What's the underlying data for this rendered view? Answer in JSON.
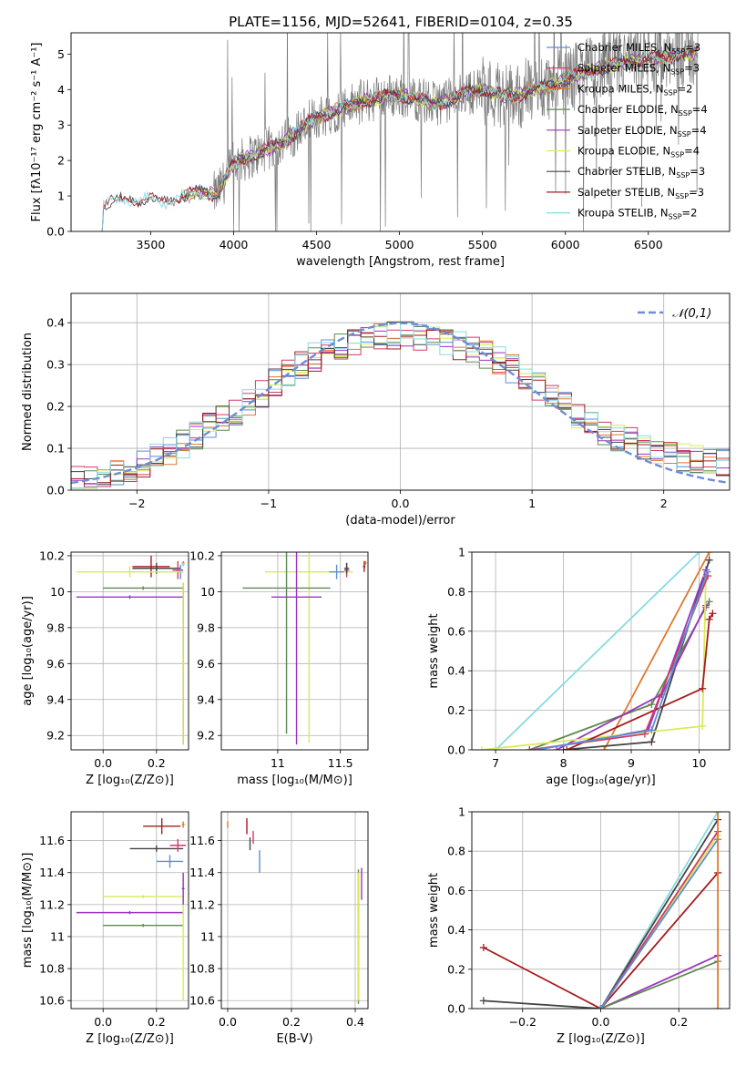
{
  "title": "PLATE=1156, MJD=52641, FIBERID=0104, z=0.35",
  "colors": {
    "Chabrier MILES": "#5a8fd6",
    "Salpeter MILES": "#d13a66",
    "Kroupa MILES": "#e0782e",
    "Chabrier ELODIE": "#5f8a52",
    "Salpeter ELODIE": "#9a35c0",
    "Kroupa ELODIE": "#d9ea55",
    "Chabrier STELIB": "#444444",
    "Salpeter STELIB": "#a51d1d",
    "Kroupa STELIB": "#86dbe3",
    "data": "#7a7a7a",
    "normal": "#6a8fd6"
  },
  "chart_data": [
    {
      "id": "spectrum",
      "type": "line",
      "title": "PLATE=1156, MJD=52641, FIBERID=0104, z=0.35",
      "xlabel": "wavelength [Angstrom, rest frame]",
      "ylabel": "Flux [fλ10⁻¹⁷ erg cm⁻² s⁻¹ A⁻¹]",
      "xlim": [
        3020,
        6990
      ],
      "ylim": [
        0,
        5.6
      ],
      "xticks": [
        3500,
        4000,
        4500,
        5000,
        5500,
        6000,
        6500
      ],
      "yticks": [
        0,
        1,
        2,
        3,
        4,
        5
      ],
      "grid": false,
      "legend_position": "right",
      "legend": [
        {
          "name": "Chabrier MILES",
          "sub": "SSP",
          "n": "=3"
        },
        {
          "name": "Salpeter MILES",
          "sub": "SSP",
          "n": "=3"
        },
        {
          "name": "Kroupa MILES",
          "sub": "SSP",
          "n": "=2"
        },
        {
          "name": "Chabrier ELODIE",
          "sub": "SSP",
          "n": "=4"
        },
        {
          "name": "Salpeter ELODIE",
          "sub": "SSP",
          "n": "=4"
        },
        {
          "name": "Kroupa ELODIE",
          "sub": "SSP",
          "n": "=4"
        },
        {
          "name": "Chabrier STELIB",
          "sub": "SSP",
          "n": "=3"
        },
        {
          "name": "Salpeter STELIB",
          "sub": "SSP",
          "n": "=3"
        },
        {
          "name": "Kroupa STELIB",
          "sub": "SSP",
          "n": "=2"
        }
      ],
      "model_trend": {
        "x": [
          3200,
          3300,
          3400,
          3500,
          3600,
          3700,
          3800,
          3900,
          4000,
          4100,
          4200,
          4300,
          4400,
          4500,
          4600,
          4700,
          4800,
          4900,
          5000,
          5100,
          5200,
          5300,
          5400,
          5500,
          5600,
          5700,
          5800,
          5900,
          6000,
          6100,
          6200,
          6300,
          6400,
          6500,
          6600,
          6700,
          6800
        ],
        "y": [
          0.75,
          0.85,
          0.9,
          0.88,
          0.85,
          1.0,
          1.1,
          1.05,
          1.9,
          2.1,
          2.3,
          2.5,
          2.9,
          3.2,
          3.4,
          3.55,
          3.7,
          3.8,
          3.85,
          3.75,
          3.6,
          3.7,
          3.9,
          4.0,
          3.85,
          3.8,
          4.0,
          4.1,
          4.3,
          4.45,
          4.6,
          4.7,
          4.8,
          4.85,
          4.9,
          5.0,
          5.05
        ]
      }
    },
    {
      "id": "residuals",
      "type": "line",
      "xlabel": "(data-model)/error",
      "ylabel": "Normed distribution",
      "xlim": [
        -2.5,
        2.5
      ],
      "ylim": [
        0,
        0.47
      ],
      "xticks": [
        -2,
        -1,
        0,
        1,
        2
      ],
      "yticks": [
        0.0,
        0.1,
        0.2,
        0.3,
        0.4
      ],
      "grid": true,
      "legend_position": "top-right",
      "legend": [
        "𝒩(0,1)"
      ],
      "series_shape": {
        "x": [
          -2.5,
          -2.3,
          -2.1,
          -1.9,
          -1.7,
          -1.5,
          -1.3,
          -1.1,
          -0.9,
          -0.7,
          -0.5,
          -0.3,
          -0.1,
          0.1,
          0.3,
          0.5,
          0.7,
          0.9,
          1.1,
          1.3,
          1.5,
          1.7,
          1.9,
          2.1,
          2.3,
          2.5
        ],
        "y": [
          0.02,
          0.035,
          0.05,
          0.07,
          0.1,
          0.14,
          0.18,
          0.22,
          0.27,
          0.31,
          0.34,
          0.36,
          0.37,
          0.37,
          0.36,
          0.34,
          0.32,
          0.28,
          0.24,
          0.19,
          0.15,
          0.12,
          0.1,
          0.08,
          0.07,
          0.06
        ]
      }
    },
    {
      "id": "age_vs_Z",
      "type": "scatter",
      "xlabel": "Z [log₁₀(Z/Z⊙)]",
      "ylabel": "age  [log₁₀(age/yr)]",
      "xlim": [
        -0.12,
        0.32
      ],
      "ylim": [
        9.12,
        10.22
      ],
      "xticks": [
        0.0,
        0.2
      ],
      "yticks": [
        9.2,
        9.4,
        9.6,
        9.8,
        10.0,
        10.2
      ],
      "points": [
        {
          "model": "Salpeter STELIB",
          "x": 0.18,
          "y": 10.14,
          "xerr": 0.07,
          "yerr": 0.06
        },
        {
          "model": "Chabrier STELIB",
          "x": 0.2,
          "y": 10.13,
          "xerr": 0.09,
          "yerr": 0.03
        },
        {
          "model": "Salpeter MILES",
          "x": 0.28,
          "y": 10.12,
          "xerr": 0.02,
          "yerr": 0.05
        },
        {
          "model": "Chabrier MILES",
          "x": 0.29,
          "y": 10.11,
          "xerr": 0.01,
          "yerr": 0.04
        },
        {
          "model": "Kroupa ELODIE",
          "x": 0.1,
          "y": 10.11,
          "xerr": 0.2,
          "yerr": 0.03
        },
        {
          "model": "Chabrier ELODIE",
          "x": 0.15,
          "y": 10.02,
          "xerr": 0.15,
          "yerr": 0.01
        },
        {
          "model": "Salpeter ELODIE",
          "x": 0.1,
          "y": 9.97,
          "xerr": 0.2,
          "yerr": 0.01
        },
        {
          "model": "Kroupa MILES",
          "x": 0.3,
          "y": 10.16,
          "xerr": 0.005,
          "yerr": 0.01
        },
        {
          "model": "Kroupa STELIB",
          "x": 0.3,
          "y": 10.15,
          "xerr": 0.005,
          "yerr": 0.01
        },
        {
          "model": "Salpeter ELODIE",
          "x": 0.3,
          "y": 9.6,
          "xerr": 0.005,
          "yerr": 0.45
        },
        {
          "model": "Kroupa ELODIE",
          "x": 0.3,
          "y": 9.6,
          "xerr": 0.005,
          "yerr": 0.45
        }
      ]
    },
    {
      "id": "age_vs_mass",
      "type": "scatter",
      "xlabel": "mass [log₁₀(M/M⊙)]",
      "xlim": [
        10.55,
        11.72
      ],
      "ylim": [
        9.12,
        10.22
      ],
      "xticks": [
        11.0,
        11.5
      ],
      "yticks": [
        9.2,
        9.4,
        9.6,
        9.8,
        10.0,
        10.2
      ],
      "points": [
        {
          "model": "Kroupa ELODIE",
          "x": 11.25,
          "y": 10.11,
          "xerr": 0.35,
          "yerr": 0.95
        },
        {
          "model": "Chabrier ELODIE",
          "x": 11.07,
          "y": 10.02,
          "xerr": 0.35,
          "yerr": 0.81
        },
        {
          "model": "Salpeter ELODIE",
          "x": 11.15,
          "y": 9.97,
          "xerr": 0.2,
          "yerr": 0.82
        },
        {
          "model": "Chabrier MILES",
          "x": 11.47,
          "y": 10.11,
          "xerr": 0.06,
          "yerr": 0.04
        },
        {
          "model": "Salpeter MILES",
          "x": 11.55,
          "y": 10.12,
          "xerr": 0.02,
          "yerr": 0.04
        },
        {
          "model": "Chabrier STELIB",
          "x": 11.55,
          "y": 10.13,
          "xerr": 0.02,
          "yerr": 0.03
        },
        {
          "model": "Salpeter STELIB",
          "x": 11.69,
          "y": 10.14,
          "xerr": 0.01,
          "yerr": 0.03
        },
        {
          "model": "Kroupa MILES",
          "x": 11.7,
          "y": 10.16,
          "xerr": 0.01,
          "yerr": 0.01
        }
      ]
    },
    {
      "id": "cumw_vs_age",
      "type": "line",
      "xlabel": "age  [log₁₀(age/yr)]",
      "ylabel": "mass weight",
      "xlim": [
        6.65,
        10.45
      ],
      "ylim": [
        0,
        1
      ],
      "xticks": [
        7,
        8,
        9,
        10
      ],
      "yticks": [
        0.0,
        0.2,
        0.4,
        0.6,
        0.8,
        1.0
      ],
      "grid": true,
      "series": [
        {
          "model": "Kroupa STELIB",
          "x": [
            7.0,
            10.0
          ],
          "y": [
            0.0,
            1.0
          ]
        },
        {
          "model": "Kroupa MILES",
          "x": [
            8.6,
            10.15
          ],
          "y": [
            0.0,
            1.0
          ]
        },
        {
          "model": "Chabrier STELIB",
          "x": [
            8.0,
            9.3,
            10.15
          ],
          "y": [
            0.0,
            0.04,
            0.96
          ]
        },
        {
          "model": "Salpeter ELODIE",
          "x": [
            7.6,
            9.25,
            10.1
          ],
          "y": [
            0.0,
            0.1,
            0.91
          ]
        },
        {
          "model": "Chabrier ELODIE",
          "x": [
            7.5,
            9.3,
            10.1,
            10.15
          ],
          "y": [
            0.0,
            0.23,
            0.72,
            0.75
          ]
        },
        {
          "model": "Salpeter ELODIE",
          "x": [
            7.9,
            9.45,
            10.1
          ],
          "y": [
            0.0,
            0.28,
            0.73
          ]
        },
        {
          "model": "Kroupa ELODIE",
          "x": [
            6.8,
            10.05,
            10.1
          ],
          "y": [
            0.0,
            0.12,
            0.88
          ]
        },
        {
          "model": "Salpeter STELIB",
          "x": [
            8.05,
            10.05,
            10.15,
            10.2
          ],
          "y": [
            0.0,
            0.31,
            0.66,
            0.69
          ]
        },
        {
          "model": "Salpeter MILES",
          "x": [
            7.5,
            9.2,
            10.13
          ],
          "y": [
            0.0,
            0.08,
            0.88
          ]
        },
        {
          "model": "Chabrier MILES",
          "x": [
            7.6,
            9.3,
            10.12
          ],
          "y": [
            0.0,
            0.1,
            0.9
          ]
        }
      ]
    },
    {
      "id": "mass_vs_Z",
      "type": "scatter",
      "xlabel": "Z [log₁₀(Z/Z⊙)]",
      "ylabel": "mass [log₁₀(M/M⊙)]",
      "xlim": [
        -0.12,
        0.32
      ],
      "ylim": [
        10.55,
        11.78
      ],
      "xticks": [
        0.0,
        0.2
      ],
      "yticks": [
        10.6,
        10.8,
        11.0,
        11.2,
        11.4,
        11.6
      ],
      "points": [
        {
          "model": "Salpeter STELIB",
          "x": 0.22,
          "y": 11.69,
          "xerr": 0.07,
          "yerr": 0.05
        },
        {
          "model": "Chabrier STELIB",
          "x": 0.2,
          "y": 11.55,
          "xerr": 0.1,
          "yerr": 0.02
        },
        {
          "model": "Salpeter MILES",
          "x": 0.28,
          "y": 11.57,
          "xerr": 0.03,
          "yerr": 0.04
        },
        {
          "model": "Chabrier MILES",
          "x": 0.25,
          "y": 11.47,
          "xerr": 0.05,
          "yerr": 0.04
        },
        {
          "model": "Kroupa MILES",
          "x": 0.3,
          "y": 11.7,
          "xerr": 0.005,
          "yerr": 0.02
        },
        {
          "model": "Kroupa ELODIE",
          "x": 0.15,
          "y": 11.25,
          "xerr": 0.15,
          "yerr": 0.01
        },
        {
          "model": "Salpeter ELODIE",
          "x": 0.1,
          "y": 11.15,
          "xerr": 0.2,
          "yerr": 0.01
        },
        {
          "model": "Chabrier ELODIE",
          "x": 0.15,
          "y": 11.07,
          "xerr": 0.15,
          "yerr": 0.01
        },
        {
          "model": "Kroupa ELODIE",
          "x": 0.3,
          "y": 11.0,
          "xerr": 0.005,
          "yerr": 0.4
        },
        {
          "model": "Salpeter ELODIE",
          "x": 0.3,
          "y": 11.3,
          "xerr": 0.005,
          "yerr": 0.1
        }
      ]
    },
    {
      "id": "mass_vs_EBV",
      "type": "scatter",
      "xlabel": "E(B-V)",
      "xlim": [
        -0.02,
        0.44
      ],
      "ylim": [
        10.55,
        11.78
      ],
      "xticks": [
        0.0,
        0.2,
        0.4
      ],
      "yticks": [
        10.6,
        10.8,
        11.0,
        11.2,
        11.4,
        11.6
      ],
      "points": [
        {
          "model": "Kroupa MILES",
          "x": 0.0,
          "y": 11.7,
          "xerr": 0.0,
          "yerr": 0.02
        },
        {
          "model": "Salpeter STELIB",
          "x": 0.06,
          "y": 11.69,
          "xerr": 0.0,
          "yerr": 0.05
        },
        {
          "model": "Salpeter MILES",
          "x": 0.08,
          "y": 11.62,
          "xerr": 0.0,
          "yerr": 0.04
        },
        {
          "model": "Chabrier STELIB",
          "x": 0.07,
          "y": 11.58,
          "xerr": 0.0,
          "yerr": 0.04
        },
        {
          "model": "Chabrier MILES",
          "x": 0.1,
          "y": 11.47,
          "xerr": 0.0,
          "yerr": 0.07
        },
        {
          "model": "Salpeter ELODIE",
          "x": 0.42,
          "y": 11.33,
          "xerr": 0.0,
          "yerr": 0.1
        },
        {
          "model": "Chabrier ELODIE",
          "x": 0.41,
          "y": 11.0,
          "xerr": 0.0,
          "yerr": 0.42
        },
        {
          "model": "Kroupa ELODIE",
          "x": 0.41,
          "y": 11.0,
          "xerr": 0.0,
          "yerr": 0.4
        }
      ]
    },
    {
      "id": "cumw_vs_Z",
      "type": "line",
      "xlabel": "Z [log₁₀(Z/Z⊙)]",
      "ylabel": "mass weight",
      "xlim": [
        -0.33,
        0.33
      ],
      "ylim": [
        0,
        1
      ],
      "xticks": [
        -0.2,
        0.0,
        0.2
      ],
      "yticks": [
        0.0,
        0.2,
        0.4,
        0.6,
        0.8,
        1.0
      ],
      "grid": true,
      "series": [
        {
          "model": "Kroupa STELIB",
          "x": [
            0.0,
            0.3
          ],
          "y": [
            0.0,
            1.0
          ]
        },
        {
          "model": "Chabrier STELIB",
          "x": [
            -0.3,
            0.0,
            0.3
          ],
          "y": [
            0.04,
            0.0,
            0.96
          ]
        },
        {
          "model": "Salpeter STELIB",
          "x": [
            -0.3,
            0.0,
            0.3
          ],
          "y": [
            0.31,
            0.0,
            0.69
          ]
        },
        {
          "model": "Salpeter ELODIE",
          "x": [
            0.0,
            0.3
          ],
          "y": [
            0.0,
            0.27
          ]
        },
        {
          "model": "Chabrier ELODIE",
          "x": [
            0.0,
            0.3
          ],
          "y": [
            0.0,
            0.24
          ]
        },
        {
          "model": "Kroupa ELODIE",
          "x": [
            0.0,
            0.3
          ],
          "y": [
            0.0,
            0.88
          ]
        },
        {
          "model": "Salpeter MILES",
          "x": [
            0.0,
            0.3
          ],
          "y": [
            0.0,
            0.9
          ]
        },
        {
          "model": "Chabrier MILES",
          "x": [
            0.0,
            0.3
          ],
          "y": [
            0.0,
            0.86
          ]
        },
        {
          "model": "Kroupa MILES",
          "x": [
            0.3,
            0.3
          ],
          "y": [
            0.0,
            1.0
          ]
        }
      ]
    }
  ]
}
